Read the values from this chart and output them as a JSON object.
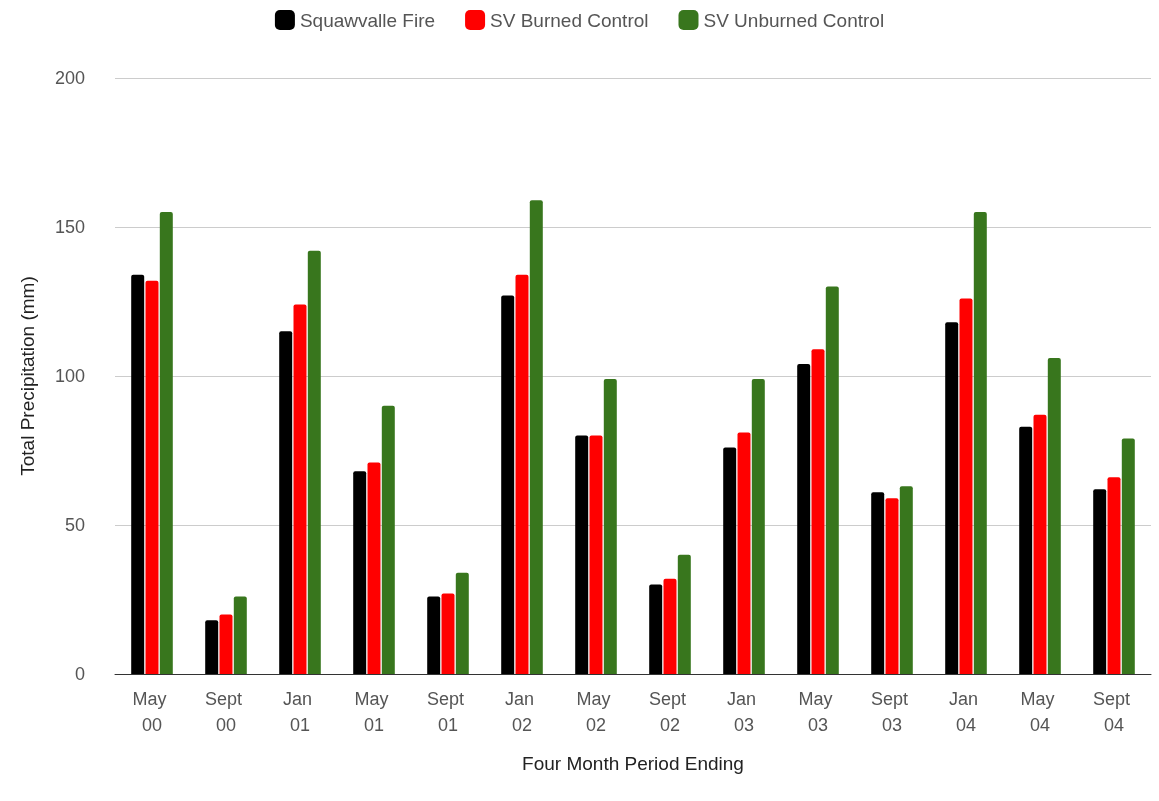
{
  "chart_data": {
    "type": "bar",
    "xlabel": "Four Month Period Ending",
    "ylabel": "Total Precipitation (mm)",
    "categories": [
      "May 00",
      "Sept 00",
      "Jan 01",
      "May 01",
      "Sept 01",
      "Jan 02",
      "May 02",
      "Sept 02",
      "Jan 03",
      "May 03",
      "Sept 03",
      "Jan 04",
      "May 04",
      "Sept 04"
    ],
    "series": [
      {
        "name": "Squawvalle Fire",
        "color": "#000000",
        "values": [
          134,
          18,
          115,
          68,
          26,
          127,
          80,
          30,
          76,
          104,
          61,
          118,
          83,
          62
        ]
      },
      {
        "name": "SV Burned Control",
        "color": "#ff0000",
        "values": [
          132,
          20,
          124,
          71,
          27,
          134,
          80,
          32,
          81,
          109,
          59,
          126,
          87,
          66
        ]
      },
      {
        "name": "SV Unburned Control",
        "color": "#38761d",
        "values": [
          155,
          26,
          142,
          90,
          34,
          159,
          99,
          40,
          99,
          130,
          63,
          155,
          106,
          79
        ]
      }
    ],
    "ylim": [
      0,
      200
    ],
    "yticks": [
      0,
      50,
      100,
      150,
      200
    ],
    "grid": "y",
    "legend": "top"
  }
}
